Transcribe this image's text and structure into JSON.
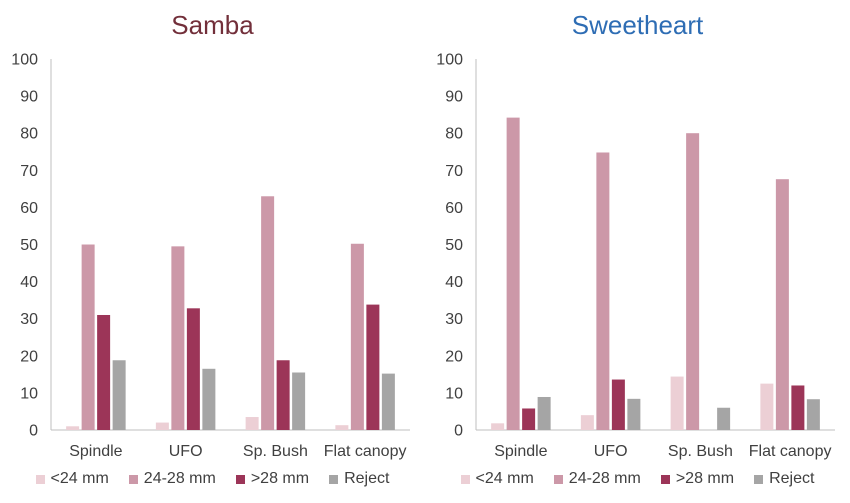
{
  "chart_data": [
    {
      "type": "bar",
      "title": "Samba",
      "title_color": "#722f3a",
      "categories": [
        "Spindle",
        "UFO",
        "Sp. Bush",
        "Flat canopy"
      ],
      "ylim": [
        0,
        100
      ],
      "yticks": [
        0,
        10,
        20,
        30,
        40,
        50,
        60,
        70,
        80,
        90,
        100
      ],
      "grid": true,
      "legend_position": "bottom",
      "series": [
        {
          "name": "<24 mm",
          "color": "#eccfd5",
          "values": [
            1,
            2,
            3.5,
            1.3
          ]
        },
        {
          "name": "24-28 mm",
          "color": "#cc98a8",
          "values": [
            50,
            49.5,
            63,
            50.2
          ]
        },
        {
          "name": ">28 mm",
          "color": "#9c3558",
          "values": [
            31,
            32.8,
            18.8,
            33.8
          ]
        },
        {
          "name": "Reject",
          "color": "#a5a5a5",
          "values": [
            18.8,
            16.5,
            15.5,
            15.2
          ]
        }
      ]
    },
    {
      "type": "bar",
      "title": "Sweetheart",
      "title_color": "#2e6db4",
      "categories": [
        "Spindle",
        "UFO",
        "Sp. Bush",
        "Flat canopy"
      ],
      "ylim": [
        0,
        100
      ],
      "yticks": [
        0,
        10,
        20,
        30,
        40,
        50,
        60,
        70,
        80,
        90,
        100
      ],
      "grid": true,
      "legend_position": "bottom",
      "series": [
        {
          "name": "<24 mm",
          "color": "#eccfd5",
          "values": [
            1.8,
            4,
            14.4,
            12.5
          ]
        },
        {
          "name": "24-28 mm",
          "color": "#cc98a8",
          "values": [
            84.2,
            74.8,
            80,
            67.6
          ]
        },
        {
          "name": ">28 mm",
          "color": "#9c3558",
          "values": [
            5.8,
            13.6,
            0,
            12
          ]
        },
        {
          "name": "Reject",
          "color": "#a5a5a5",
          "values": [
            8.9,
            8.4,
            6,
            8.3
          ]
        }
      ]
    }
  ]
}
